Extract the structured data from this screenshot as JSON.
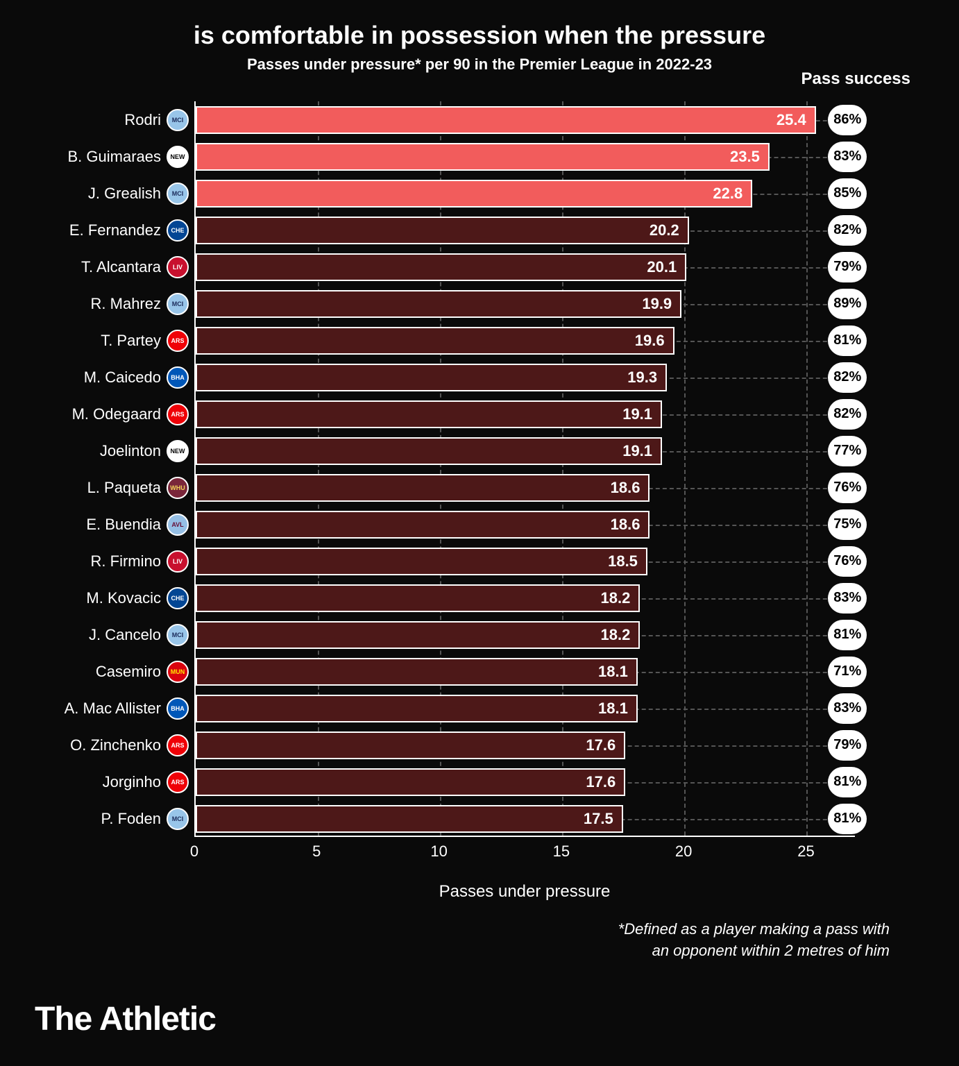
{
  "title": "is comfortable in possession when the pressure",
  "subtitle": "Passes under pressure* per 90 in the Premier League in 2022-23",
  "pass_success_header": "Pass success",
  "x_axis_label": "Passes under pressure",
  "footnote_line1": "*Defined as a player making a pass with",
  "footnote_line2": "an opponent within 2 metres of him",
  "brand": "The Athletic",
  "chart": {
    "type": "horizontal-bar",
    "xlim_max": 27,
    "x_ticks": [
      0,
      5,
      10,
      15,
      20,
      25
    ],
    "bar_border_color": "#ffffff",
    "grid_color": "#555555",
    "background_color": "#0a0a0a",
    "highlight_color": "#f25c5c",
    "normal_color": "#4d1818",
    "label_fontsize": 22,
    "value_fontsize": 22,
    "players": [
      {
        "name": "Rodri",
        "value": 25.4,
        "success": "86%",
        "highlight": true,
        "team": "MCI",
        "badge_bg": "#98c5e9",
        "badge_fg": "#1c2c5b"
      },
      {
        "name": "B. Guimaraes",
        "value": 23.5,
        "success": "83%",
        "highlight": true,
        "team": "NEW",
        "badge_bg": "#ffffff",
        "badge_fg": "#000000"
      },
      {
        "name": "J. Grealish",
        "value": 22.8,
        "success": "85%",
        "highlight": true,
        "team": "MCI",
        "badge_bg": "#98c5e9",
        "badge_fg": "#1c2c5b"
      },
      {
        "name": "E. Fernandez",
        "value": 20.2,
        "success": "82%",
        "highlight": false,
        "team": "CHE",
        "badge_bg": "#034694",
        "badge_fg": "#ffffff"
      },
      {
        "name": "T. Alcantara",
        "value": 20.1,
        "success": "79%",
        "highlight": false,
        "team": "LIV",
        "badge_bg": "#c8102e",
        "badge_fg": "#ffffff"
      },
      {
        "name": "R. Mahrez",
        "value": 19.9,
        "success": "89%",
        "highlight": false,
        "team": "MCI",
        "badge_bg": "#98c5e9",
        "badge_fg": "#1c2c5b"
      },
      {
        "name": "T. Partey",
        "value": 19.6,
        "success": "81%",
        "highlight": false,
        "team": "ARS",
        "badge_bg": "#ef0107",
        "badge_fg": "#ffffff"
      },
      {
        "name": "M. Caicedo",
        "value": 19.3,
        "success": "82%",
        "highlight": false,
        "team": "BHA",
        "badge_bg": "#0057b8",
        "badge_fg": "#ffffff"
      },
      {
        "name": "M. Odegaard",
        "value": 19.1,
        "success": "82%",
        "highlight": false,
        "team": "ARS",
        "badge_bg": "#ef0107",
        "badge_fg": "#ffffff"
      },
      {
        "name": "Joelinton",
        "value": 19.1,
        "success": "77%",
        "highlight": false,
        "team": "NEW",
        "badge_bg": "#ffffff",
        "badge_fg": "#000000"
      },
      {
        "name": "L. Paqueta",
        "value": 18.6,
        "success": "76%",
        "highlight": false,
        "team": "WHU",
        "badge_bg": "#7a263a",
        "badge_fg": "#f3d459"
      },
      {
        "name": "E. Buendia",
        "value": 18.6,
        "success": "75%",
        "highlight": false,
        "team": "AVL",
        "badge_bg": "#95bfe5",
        "badge_fg": "#670e36"
      },
      {
        "name": "R. Firmino",
        "value": 18.5,
        "success": "76%",
        "highlight": false,
        "team": "LIV",
        "badge_bg": "#c8102e",
        "badge_fg": "#ffffff"
      },
      {
        "name": "M. Kovacic",
        "value": 18.2,
        "success": "83%",
        "highlight": false,
        "team": "CHE",
        "badge_bg": "#034694",
        "badge_fg": "#ffffff"
      },
      {
        "name": "J. Cancelo",
        "value": 18.2,
        "success": "81%",
        "highlight": false,
        "team": "MCI",
        "badge_bg": "#98c5e9",
        "badge_fg": "#1c2c5b"
      },
      {
        "name": "Casemiro",
        "value": 18.1,
        "success": "71%",
        "highlight": false,
        "team": "MUN",
        "badge_bg": "#da020e",
        "badge_fg": "#ffe500"
      },
      {
        "name": "A. Mac Allister",
        "value": 18.1,
        "success": "83%",
        "highlight": false,
        "team": "BHA",
        "badge_bg": "#0057b8",
        "badge_fg": "#ffffff"
      },
      {
        "name": "O. Zinchenko",
        "value": 17.6,
        "success": "79%",
        "highlight": false,
        "team": "ARS",
        "badge_bg": "#ef0107",
        "badge_fg": "#ffffff"
      },
      {
        "name": "Jorginho",
        "value": 17.6,
        "success": "81%",
        "highlight": false,
        "team": "ARS",
        "badge_bg": "#ef0107",
        "badge_fg": "#ffffff"
      },
      {
        "name": "P. Foden",
        "value": 17.5,
        "success": "81%",
        "highlight": false,
        "team": "MCI",
        "badge_bg": "#98c5e9",
        "badge_fg": "#1c2c5b"
      }
    ]
  }
}
